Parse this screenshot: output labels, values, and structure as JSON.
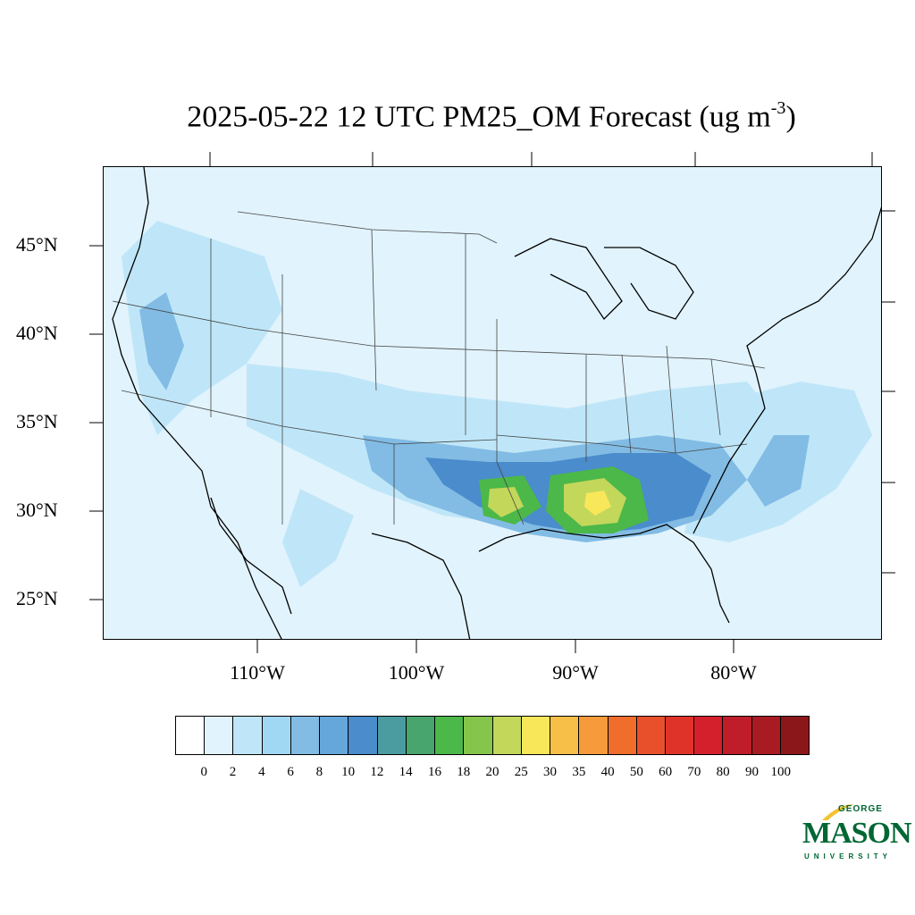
{
  "title": {
    "main": "2025-05-22 12 UTC PM25_OM Forecast (ug m",
    "exponent": "-3",
    "close": ")"
  },
  "map": {
    "lat_labels": [
      "45°N",
      "40°N",
      "35°N",
      "30°N",
      "25°N"
    ],
    "lon_labels": [
      "110°W",
      "100°W",
      "90°W",
      "80°W"
    ],
    "background_color": "#e1f3fc"
  },
  "colorbar": {
    "colors": [
      "#ffffff",
      "#e1f3fc",
      "#bfe6f8",
      "#a0d8f4",
      "#82bce4",
      "#66a7db",
      "#4a8ccc",
      "#4b9ca0",
      "#47a56d",
      "#4bb849",
      "#86c54c",
      "#c3d75b",
      "#f9e75a",
      "#f8bf48",
      "#f69a3b",
      "#f06d2c",
      "#e8502c",
      "#df3329",
      "#d41f2c",
      "#be1d29",
      "#a91b22",
      "#8b171b"
    ],
    "ticks": [
      "0",
      "2",
      "4",
      "6",
      "8",
      "10",
      "12",
      "14",
      "16",
      "18",
      "20",
      "25",
      "30",
      "35",
      "40",
      "50",
      "60",
      "70",
      "80",
      "90",
      "100"
    ]
  },
  "logo": {
    "line1": "GEORGE",
    "line2": "MASON",
    "line3": "UNIVERSITY",
    "color": "#006633",
    "accent": "#f2c230"
  }
}
